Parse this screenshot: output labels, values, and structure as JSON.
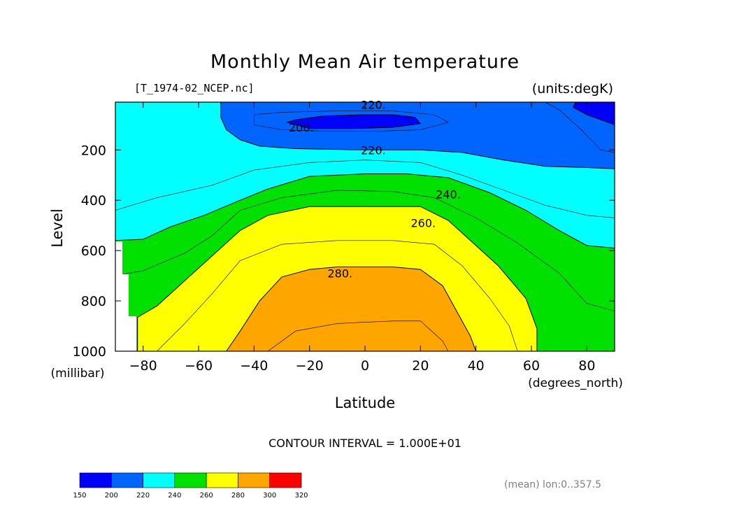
{
  "chart_data": {
    "type": "heatmap",
    "subtype": "filled-contour",
    "title": "Monthly Mean Air temperature",
    "file_label": "[T_1974-02_NCEP.nc]",
    "units_label": "(units:degK)",
    "xlabel": "Latitude",
    "x_units": "(degrees_north)",
    "ylabel": "Level",
    "y_units": "(millibar)",
    "xlim": [
      -90,
      90
    ],
    "ylim": [
      1000,
      10
    ],
    "x_ticks": [
      {
        "value": -80,
        "label": "-80"
      },
      {
        "value": -60,
        "label": "-60"
      },
      {
        "value": -40,
        "label": "-40"
      },
      {
        "value": -20,
        "label": "-20"
      },
      {
        "value": 0,
        "label": "0"
      },
      {
        "value": 20,
        "label": "20"
      },
      {
        "value": 40,
        "label": "40"
      },
      {
        "value": 60,
        "label": "60"
      },
      {
        "value": 80,
        "label": "80"
      }
    ],
    "y_ticks": [
      {
        "value": 200,
        "label": "200"
      },
      {
        "value": 400,
        "label": "400"
      },
      {
        "value": 600,
        "label": "600"
      },
      {
        "value": 800,
        "label": "800"
      },
      {
        "value": 1000,
        "label": "1000"
      }
    ],
    "contour_interval_label": "CONTOUR INTERVAL = 1.000E+01",
    "footer_label": "(mean) lon:0..357.5",
    "contour_labels": [
      {
        "text": "220.",
        "lat": 3,
        "level": 20
      },
      {
        "text": "200.",
        "lat": -23,
        "level": 110
      },
      {
        "text": "220.",
        "lat": 3,
        "level": 200
      },
      {
        "text": "240.",
        "lat": 30,
        "level": 375
      },
      {
        "text": "260.",
        "lat": 21,
        "level": 490
      },
      {
        "text": "280.",
        "lat": -9,
        "level": 690
      }
    ],
    "colorbar": {
      "levels": [
        "150",
        "200",
        "220",
        "240",
        "260",
        "280",
        "300",
        "320"
      ],
      "colors": [
        "#0000ff",
        "#0064ff",
        "#00ffff",
        "#00e100",
        "#ffff00",
        "#ffa500",
        "#ff0000"
      ]
    },
    "bands": [
      {
        "name": "200-220",
        "color": "#0064ff",
        "points": [
          [
            -52,
            10
          ],
          [
            -52,
            70
          ],
          [
            -50,
            120
          ],
          [
            -45,
            160
          ],
          [
            -38,
            185
          ],
          [
            -25,
            195
          ],
          [
            0,
            200
          ],
          [
            20,
            200
          ],
          [
            35,
            210
          ],
          [
            50,
            240
          ],
          [
            65,
            265
          ],
          [
            80,
            270
          ],
          [
            90,
            275
          ],
          [
            90,
            10
          ]
        ]
      },
      {
        "name": "150-200",
        "color": "#0000ff",
        "points": [
          [
            -28,
            90
          ],
          [
            -25,
            80
          ],
          [
            -15,
            65
          ],
          [
            0,
            60
          ],
          [
            10,
            60
          ],
          [
            18,
            70
          ],
          [
            20,
            95
          ],
          [
            10,
            110
          ],
          [
            -5,
            115
          ],
          [
            -20,
            115
          ]
        ]
      },
      {
        "name": "150-200 north",
        "color": "#0000ff",
        "points": [
          [
            76,
            10
          ],
          [
            75,
            30
          ],
          [
            80,
            60
          ],
          [
            90,
            100
          ],
          [
            90,
            10
          ]
        ]
      },
      {
        "name": "240-260",
        "color": "#00e100",
        "points": [
          [
            -90,
            560
          ],
          [
            -80,
            555
          ],
          [
            -70,
            505
          ],
          [
            -58,
            460
          ],
          [
            -45,
            400
          ],
          [
            -35,
            355
          ],
          [
            -20,
            305
          ],
          [
            0,
            295
          ],
          [
            15,
            295
          ],
          [
            30,
            310
          ],
          [
            45,
            370
          ],
          [
            58,
            440
          ],
          [
            70,
            520
          ],
          [
            80,
            580
          ],
          [
            90,
            590
          ],
          [
            90,
            1000
          ],
          [
            -90,
            1000
          ]
        ]
      },
      {
        "name": "260-280",
        "color": "#ffff00",
        "points": [
          [
            -82,
            865
          ],
          [
            -75,
            820
          ],
          [
            -65,
            720
          ],
          [
            -55,
            620
          ],
          [
            -45,
            520
          ],
          [
            -35,
            460
          ],
          [
            -20,
            425
          ],
          [
            0,
            425
          ],
          [
            20,
            425
          ],
          [
            30,
            480
          ],
          [
            38,
            560
          ],
          [
            48,
            660
          ],
          [
            58,
            790
          ],
          [
            62,
            910
          ],
          [
            62,
            1000
          ],
          [
            -82,
            1000
          ]
        ]
      },
      {
        "name": "280-300",
        "color": "#ffa500",
        "points": [
          [
            -50,
            1000
          ],
          [
            -45,
            920
          ],
          [
            -38,
            800
          ],
          [
            -30,
            705
          ],
          [
            -20,
            675
          ],
          [
            -10,
            665
          ],
          [
            0,
            665
          ],
          [
            10,
            665
          ],
          [
            20,
            675
          ],
          [
            28,
            740
          ],
          [
            33,
            840
          ],
          [
            38,
            940
          ],
          [
            40,
            1000
          ]
        ]
      }
    ],
    "contour_lines": [
      {
        "level": "210",
        "points": [
          [
            -40,
            60
          ],
          [
            -30,
            50
          ],
          [
            -10,
            45
          ],
          [
            10,
            45
          ],
          [
            25,
            60
          ],
          [
            30,
            90
          ],
          [
            20,
            120
          ],
          [
            5,
            125
          ],
          [
            -15,
            125
          ],
          [
            -30,
            120
          ],
          [
            -40,
            100
          ],
          [
            -40,
            60
          ]
        ]
      },
      {
        "level": "230",
        "points": [
          [
            -90,
            440
          ],
          [
            -75,
            390
          ],
          [
            -55,
            340
          ],
          [
            -40,
            280
          ],
          [
            -20,
            250
          ],
          [
            0,
            240
          ],
          [
            20,
            250
          ],
          [
            35,
            300
          ],
          [
            50,
            360
          ],
          [
            65,
            420
          ],
          [
            80,
            460
          ],
          [
            90,
            470
          ]
        ]
      },
      {
        "level": "230 north",
        "points": [
          [
            65,
            10
          ],
          [
            70,
            40
          ],
          [
            78,
            120
          ],
          [
            85,
            200
          ],
          [
            90,
            210
          ]
        ]
      },
      {
        "level": "250",
        "points": [
          [
            -90,
            700
          ],
          [
            -80,
            680
          ],
          [
            -65,
            610
          ],
          [
            -55,
            540
          ],
          [
            -45,
            440
          ],
          [
            -30,
            390
          ],
          [
            -10,
            360
          ],
          [
            10,
            365
          ],
          [
            25,
            390
          ],
          [
            40,
            470
          ],
          [
            55,
            570
          ],
          [
            70,
            690
          ],
          [
            80,
            810
          ],
          [
            90,
            840
          ]
        ]
      },
      {
        "level": "270",
        "points": [
          [
            -75,
            1000
          ],
          [
            -65,
            890
          ],
          [
            -55,
            770
          ],
          [
            -45,
            640
          ],
          [
            -30,
            575
          ],
          [
            -10,
            560
          ],
          [
            10,
            560
          ],
          [
            25,
            575
          ],
          [
            35,
            660
          ],
          [
            45,
            790
          ],
          [
            52,
            900
          ],
          [
            55,
            1000
          ]
        ]
      },
      {
        "level": "290",
        "points": [
          [
            -35,
            1000
          ],
          [
            -25,
            920
          ],
          [
            -10,
            890
          ],
          [
            10,
            880
          ],
          [
            20,
            880
          ],
          [
            28,
            960
          ],
          [
            30,
            1000
          ]
        ]
      }
    ]
  }
}
